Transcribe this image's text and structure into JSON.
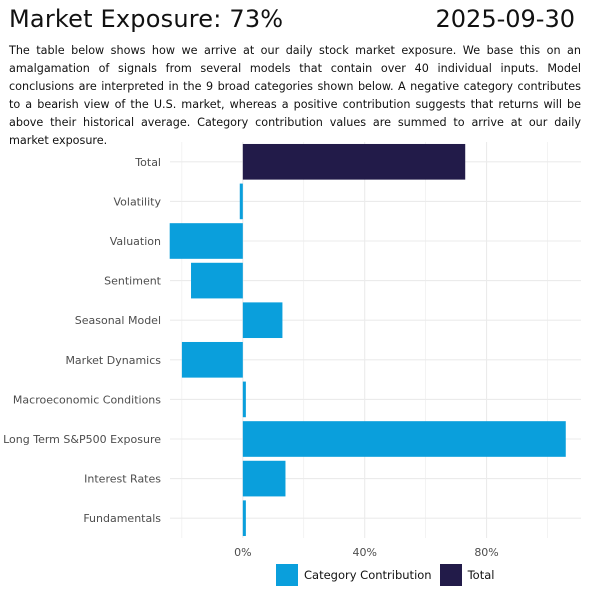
{
  "header": {
    "title": "Market Exposure: 73%",
    "date": "2025-09-30",
    "description": "The table below shows how we arrive at our daily stock market exposure.  We base this on an amalgamation of signals from several models that contain over 40 individual inputs.  Model conclusions are interpreted in the 9 broad categories shown below.  A negative category contributes to a bearish view of the U.S. market, whereas a positive contribution suggests that returns will be above their historical average. Category contribution values are summed to arrive at our daily market exposure."
  },
  "colors": {
    "category": "#0a9fdc",
    "total": "#221b49",
    "grid": "#ebebeb",
    "axis_text": "#4d4d4d"
  },
  "chart_data": {
    "type": "bar",
    "orientation": "horizontal",
    "categories": [
      "Total",
      "Volatility",
      "Valuation",
      "Sentiment",
      "Seasonal Model",
      "Market Dynamics",
      "Macroeconomic Conditions",
      "Long Term S&P500 Exposure",
      "Interest Rates",
      "Fundamentals"
    ],
    "values": [
      73,
      -1,
      -24,
      -17,
      13,
      -20,
      1,
      106,
      14,
      1
    ],
    "series_kind": [
      "total",
      "category",
      "category",
      "category",
      "category",
      "category",
      "category",
      "category",
      "category",
      "category"
    ],
    "xlim": [
      -23.9,
      111
    ],
    "x_ticks": [
      0,
      40,
      80
    ],
    "x_tick_labels": [
      "0%",
      "40%",
      "80%"
    ],
    "xlabel": "",
    "ylabel": "",
    "grid": true,
    "legend": {
      "position": "bottom",
      "entries": [
        {
          "label": "Category Contribution",
          "kind": "category"
        },
        {
          "label": "Total",
          "kind": "total"
        }
      ]
    }
  }
}
